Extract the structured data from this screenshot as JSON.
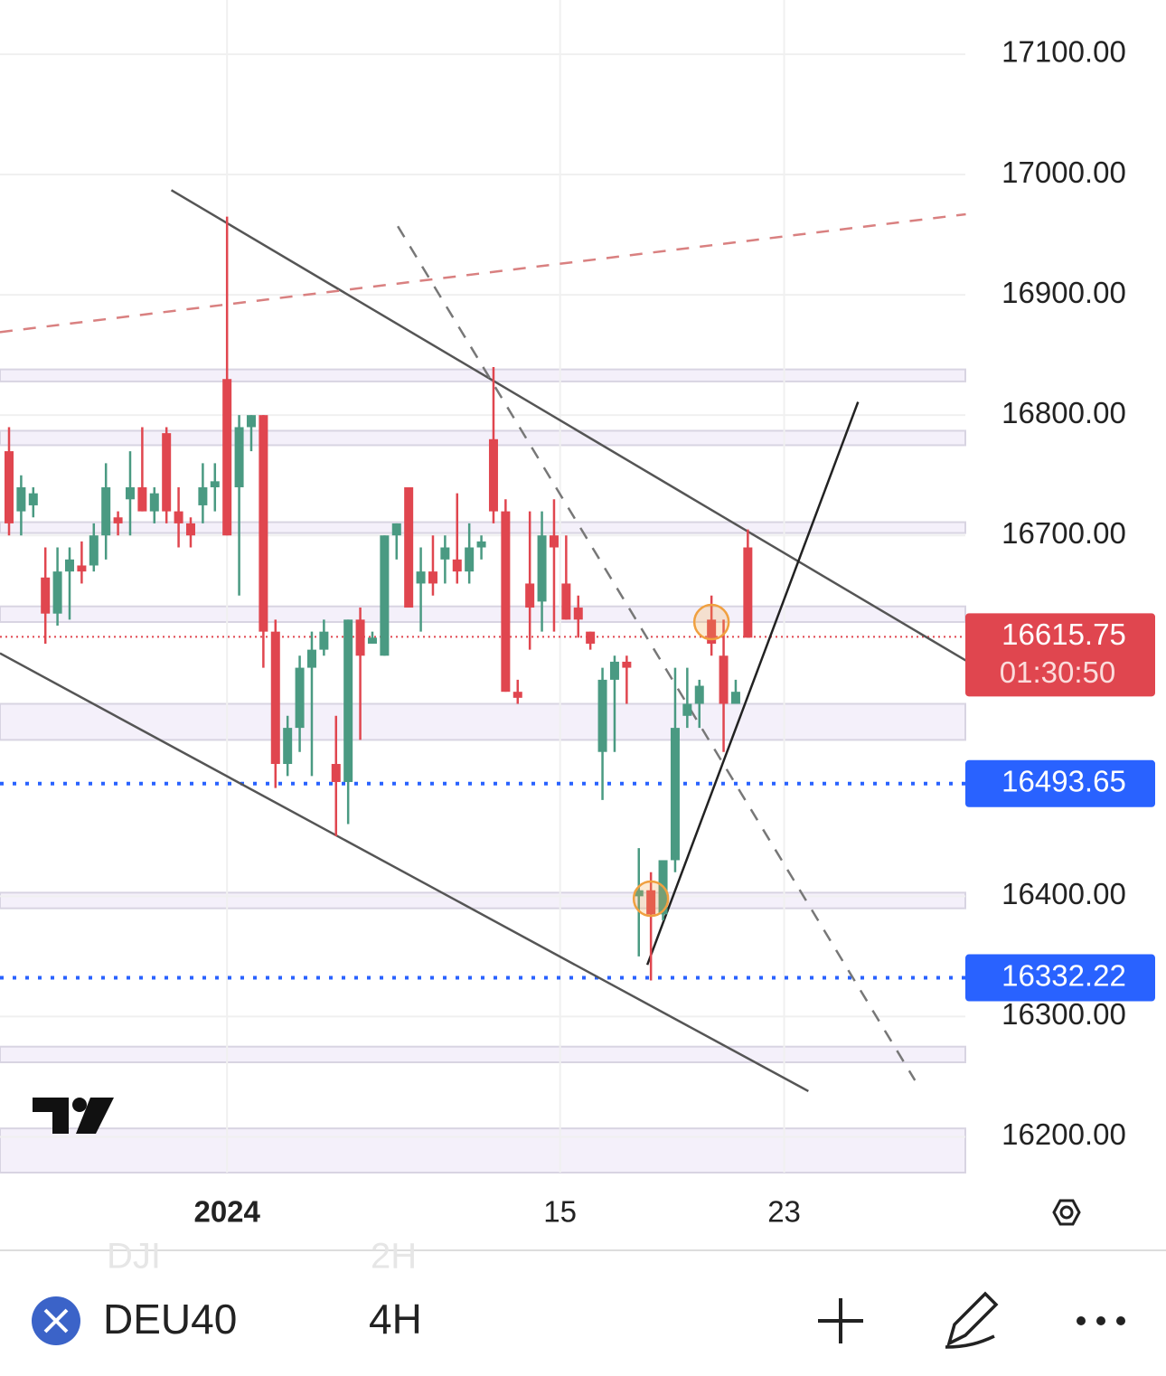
{
  "chart_data": {
    "type": "candlestick",
    "symbol": "DEU40",
    "interval": "4H",
    "faded_symbols": [
      "DJI",
      "2H"
    ],
    "xlim": [
      -0.746,
      78.96
    ],
    "ylim": [
      16170.3,
      17145.1
    ],
    "xticks": [
      {
        "value": 18,
        "label": "2024"
      },
      {
        "value": 45.5,
        "label": "15"
      },
      {
        "value": 64,
        "label": "23"
      }
    ],
    "yticks": [
      {
        "value": 17100,
        "label": "17100.00"
      },
      {
        "value": 17000,
        "label": "17000.00"
      },
      {
        "value": 16900,
        "label": "16900.00"
      },
      {
        "value": 16800,
        "label": "16800.00"
      },
      {
        "value": 16700,
        "label": "16700.00"
      },
      {
        "value": 16400,
        "label": "16400.00"
      },
      {
        "value": 16300,
        "label": "16300.00"
      },
      {
        "value": 16200,
        "label": "16200.00"
      }
    ],
    "grid": true,
    "up_color": "#4a9a82",
    "down_color": "#e0464f",
    "open": [
      16770,
      16720,
      16725,
      16665,
      16635,
      16670,
      16675,
      16675,
      16700,
      16715,
      16730,
      16740,
      16720,
      16785,
      16720,
      16710,
      16725,
      16740,
      16830,
      16740,
      16790,
      16800,
      16620,
      16510,
      16540,
      16590,
      16605,
      16510,
      16495,
      16630,
      16610,
      16600,
      16700,
      16740,
      16660,
      16670,
      16680,
      16680,
      16670,
      16690,
      16780,
      16720,
      16570,
      16660,
      16645,
      16700,
      16660,
      16640,
      16620,
      16520,
      16580,
      16595,
      16400,
      16405,
      16385,
      16430,
      16550,
      16560,
      16630,
      16600,
      16560,
      16690
    ],
    "high": [
      16790,
      16750,
      16740,
      16690,
      16690,
      16690,
      16695,
      16710,
      16760,
      16720,
      16770,
      16790,
      16740,
      16790,
      16740,
      16715,
      16760,
      16760,
      16965,
      16800,
      16800,
      16800,
      16630,
      16550,
      16600,
      16620,
      16630,
      16550,
      16630,
      16640,
      16620,
      16700,
      16710,
      16740,
      16690,
      16700,
      16700,
      16735,
      16710,
      16700,
      16840,
      16730,
      16580,
      16720,
      16720,
      16730,
      16700,
      16650,
      16620,
      16590,
      16600,
      16600,
      16440,
      16420,
      16430,
      16590,
      16590,
      16580,
      16650,
      16630,
      16580,
      16705
    ],
    "low": [
      16700,
      16700,
      16715,
      16610,
      16625,
      16630,
      16660,
      16670,
      16680,
      16700,
      16700,
      16720,
      16710,
      16710,
      16690,
      16690,
      16710,
      16720,
      16700,
      16650,
      16770,
      16590,
      16490,
      16500,
      16520,
      16500,
      16600,
      16450,
      16460,
      16530,
      16610,
      16600,
      16680,
      16640,
      16620,
      16650,
      16660,
      16660,
      16660,
      16680,
      16710,
      16570,
      16560,
      16605,
      16620,
      16620,
      16630,
      16615,
      16605,
      16480,
      16520,
      16560,
      16350,
      16330,
      16380,
      16420,
      16540,
      16540,
      16600,
      16520,
      16560,
      16615
    ],
    "close": [
      16710,
      16740,
      16735,
      16635,
      16670,
      16680,
      16670,
      16700,
      16740,
      16710,
      16740,
      16720,
      16735,
      16720,
      16710,
      16700,
      16740,
      16745,
      16700,
      16790,
      16800,
      16620,
      16510,
      16540,
      16590,
      16605,
      16620,
      16495,
      16630,
      16600,
      16615,
      16700,
      16710,
      16640,
      16670,
      16660,
      16690,
      16670,
      16690,
      16695,
      16720,
      16570,
      16565,
      16640,
      16700,
      16690,
      16630,
      16630,
      16610,
      16580,
      16595,
      16590,
      16405,
      16385,
      16430,
      16540,
      16560,
      16575,
      16610,
      16560,
      16570,
      16615
    ],
    "price_lines": [
      {
        "value": 16615.75,
        "color": "#e0464f",
        "countdown": "01:30:50"
      },
      {
        "value": 16493.65,
        "color": "#2962ff"
      },
      {
        "value": 16332.22,
        "color": "#2962ff"
      }
    ],
    "zones": [
      [
        16828,
        16838
      ],
      [
        16775,
        16787
      ],
      [
        16702,
        16711
      ],
      [
        16628,
        16641
      ],
      [
        16530,
        16560
      ],
      [
        16390,
        16403
      ],
      [
        16262,
        16275
      ],
      [
        16170.3,
        16207
      ]
    ],
    "trend_lines": [
      {
        "points": [
          [
            13.4,
            16987
          ],
          [
            79,
            16596
          ]
        ],
        "color": "#555555",
        "style": "solid"
      },
      {
        "points": [
          [
            -0.75,
            16602
          ],
          [
            66,
            16238
          ]
        ],
        "color": "#555555",
        "style": "solid"
      },
      {
        "points": [
          [
            32.1,
            16957
          ],
          [
            74.8,
            16247
          ]
        ],
        "color": "#777777",
        "style": "dashed"
      },
      {
        "points": [
          [
            -0.75,
            16869
          ],
          [
            79,
            16967
          ]
        ],
        "color": "#d98080",
        "style": "dashed"
      },
      {
        "points": [
          [
            52.7,
            16343
          ],
          [
            70.1,
            16811
          ]
        ],
        "color": "#222222",
        "style": "solid"
      }
    ],
    "markers": [
      [
        53,
        16398
      ],
      [
        58,
        16628
      ]
    ]
  }
}
